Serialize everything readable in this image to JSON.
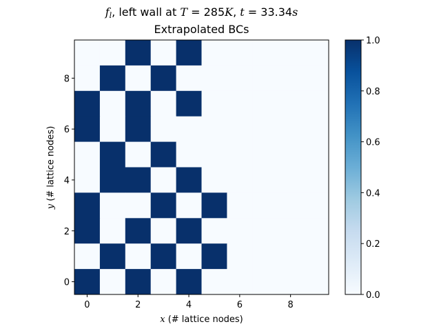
{
  "chart_data": {
    "type": "heatmap",
    "title": {
      "prefix": "f",
      "sub": "l",
      "mid": ", left wall at ",
      "T": "T",
      "eq": " = 285",
      "Tunit": "K",
      "comma": ", ",
      "t": "t",
      "eq2": " = 33.34",
      "tunit": "s"
    },
    "subtitle": "Extrapolated BCs",
    "xlabel": {
      "var": "x",
      "text": " (# lattice nodes)"
    },
    "ylabel": {
      "var": "y",
      "text": " (# lattice nodes)"
    },
    "x_ticks": [
      "0",
      "2",
      "4",
      "6",
      "8"
    ],
    "y_ticks": [
      "0",
      "2",
      "4",
      "6",
      "8"
    ],
    "xlim": [
      -0.5,
      9.5
    ],
    "ylim": [
      -0.5,
      9.5
    ],
    "colorbar": {
      "ticks": [
        "0.0",
        "0.2",
        "0.4",
        "0.6",
        "0.8",
        "1.0"
      ],
      "range": [
        0,
        1
      ],
      "colormap": "Blues"
    },
    "colors": {
      "low": "#f7fbff",
      "high": "#08306b"
    },
    "grid": false,
    "rows_top_to_bottom": [
      [
        0,
        0,
        1,
        0,
        1,
        0,
        0,
        0,
        0,
        0
      ],
      [
        0,
        1,
        0,
        1,
        0,
        0,
        0,
        0,
        0,
        0
      ],
      [
        1,
        0,
        1,
        0,
        1,
        0,
        0,
        0,
        0,
        0
      ],
      [
        1,
        0,
        1,
        0,
        0,
        0,
        0,
        0,
        0,
        0
      ],
      [
        0,
        1,
        0,
        1,
        0,
        0,
        0,
        0,
        0,
        0
      ],
      [
        0,
        1,
        1,
        0,
        1,
        0,
        0,
        0,
        0,
        0
      ],
      [
        1,
        0,
        0,
        1,
        0,
        1,
        0,
        0,
        0,
        0
      ],
      [
        1,
        0,
        1,
        0,
        1,
        0,
        0,
        0,
        0,
        0
      ],
      [
        0,
        1,
        0,
        1,
        0,
        1,
        0,
        0,
        0,
        0
      ],
      [
        1,
        0,
        1,
        0,
        1,
        0,
        0,
        0,
        0,
        0
      ]
    ]
  }
}
